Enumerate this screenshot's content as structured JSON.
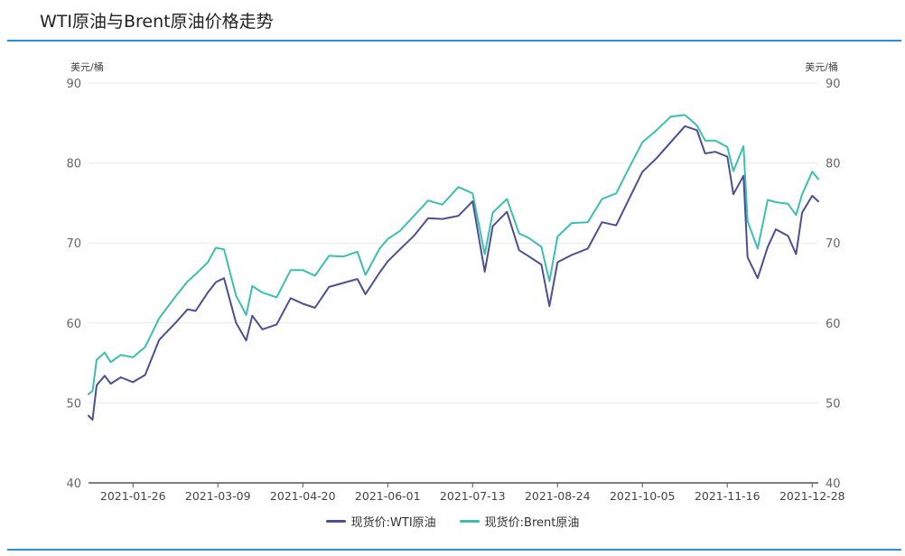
{
  "title": "WTI原油与Brent原油价格走势",
  "colors": {
    "accent": "#2a8fd8",
    "wti": "#4b5094",
    "brent": "#3dbfb0",
    "grid": "#e8e8e8",
    "axis": "#555555"
  },
  "legend": {
    "wti_label": "现货价:WTI原油",
    "brent_label": "现货价:Brent原油"
  },
  "chart_data": {
    "type": "line",
    "title": "WTI原油与Brent原油价格走势",
    "ylabel_left": "美元/桶",
    "ylabel_right": "美元/桶",
    "ylim": [
      40,
      90
    ],
    "yticks": [
      40,
      50,
      60,
      70,
      80,
      90
    ],
    "x_range": [
      "2021-01-04",
      "2021-12-31"
    ],
    "xticks": [
      "2021-01-26",
      "2021-03-09",
      "2021-04-20",
      "2021-06-01",
      "2021-07-13",
      "2021-08-24",
      "2021-10-05",
      "2021-11-16",
      "2021-12-28"
    ],
    "grid": true,
    "legend_position": "bottom-center",
    "series": [
      {
        "name": "现货价:WTI原油",
        "x": [
          "2021-01-04",
          "2021-01-06",
          "2021-01-08",
          "2021-01-12",
          "2021-01-15",
          "2021-01-20",
          "2021-01-26",
          "2021-02-01",
          "2021-02-08",
          "2021-02-16",
          "2021-02-22",
          "2021-02-26",
          "2021-03-04",
          "2021-03-08",
          "2021-03-12",
          "2021-03-18",
          "2021-03-23",
          "2021-03-26",
          "2021-03-31",
          "2021-04-07",
          "2021-04-14",
          "2021-04-20",
          "2021-04-26",
          "2021-05-03",
          "2021-05-10",
          "2021-05-17",
          "2021-05-21",
          "2021-05-28",
          "2021-06-01",
          "2021-06-07",
          "2021-06-14",
          "2021-06-21",
          "2021-06-28",
          "2021-07-06",
          "2021-07-13",
          "2021-07-19",
          "2021-07-23",
          "2021-07-30",
          "2021-08-05",
          "2021-08-10",
          "2021-08-16",
          "2021-08-20",
          "2021-08-24",
          "2021-08-31",
          "2021-09-08",
          "2021-09-15",
          "2021-09-22",
          "2021-09-28",
          "2021-10-05",
          "2021-10-12",
          "2021-10-19",
          "2021-10-26",
          "2021-11-01",
          "2021-11-05",
          "2021-11-10",
          "2021-11-16",
          "2021-11-19",
          "2021-11-24",
          "2021-11-26",
          "2021-12-01",
          "2021-12-06",
          "2021-12-10",
          "2021-12-16",
          "2021-12-20",
          "2021-12-23",
          "2021-12-28",
          "2021-12-31"
        ],
        "y": [
          48.4,
          47.9,
          52.2,
          53.4,
          52.4,
          53.2,
          52.6,
          53.5,
          57.9,
          60.0,
          61.7,
          61.5,
          63.8,
          65.1,
          65.6,
          60.0,
          57.8,
          60.9,
          59.2,
          59.8,
          63.1,
          62.4,
          61.9,
          64.5,
          65.0,
          65.5,
          63.6,
          66.3,
          67.7,
          69.2,
          70.9,
          73.1,
          73.0,
          73.4,
          75.2,
          66.4,
          72.1,
          73.9,
          69.1,
          68.3,
          67.3,
          62.1,
          67.6,
          68.5,
          69.3,
          72.6,
          72.2,
          75.3,
          78.9,
          80.6,
          82.6,
          84.6,
          84.1,
          81.2,
          81.4,
          80.8,
          76.1,
          78.4,
          68.2,
          65.6,
          69.5,
          71.7,
          70.9,
          68.6,
          73.8,
          75.9,
          75.2
        ]
      },
      {
        "name": "现货价:Brent原油",
        "x": [
          "2021-01-04",
          "2021-01-06",
          "2021-01-08",
          "2021-01-12",
          "2021-01-15",
          "2021-01-20",
          "2021-01-26",
          "2021-02-01",
          "2021-02-08",
          "2021-02-16",
          "2021-02-22",
          "2021-02-26",
          "2021-03-04",
          "2021-03-08",
          "2021-03-12",
          "2021-03-18",
          "2021-03-23",
          "2021-03-26",
          "2021-03-31",
          "2021-04-07",
          "2021-04-14",
          "2021-04-20",
          "2021-04-26",
          "2021-05-03",
          "2021-05-10",
          "2021-05-17",
          "2021-05-21",
          "2021-05-28",
          "2021-06-01",
          "2021-06-07",
          "2021-06-14",
          "2021-06-21",
          "2021-06-28",
          "2021-07-06",
          "2021-07-13",
          "2021-07-19",
          "2021-07-23",
          "2021-07-30",
          "2021-08-05",
          "2021-08-10",
          "2021-08-16",
          "2021-08-20",
          "2021-08-24",
          "2021-08-31",
          "2021-09-08",
          "2021-09-15",
          "2021-09-22",
          "2021-09-28",
          "2021-10-05",
          "2021-10-12",
          "2021-10-19",
          "2021-10-26",
          "2021-11-01",
          "2021-11-05",
          "2021-11-10",
          "2021-11-16",
          "2021-11-19",
          "2021-11-24",
          "2021-11-26",
          "2021-12-01",
          "2021-12-06",
          "2021-12-10",
          "2021-12-16",
          "2021-12-20",
          "2021-12-23",
          "2021-12-28",
          "2021-12-31"
        ],
        "y": [
          51.1,
          51.5,
          55.4,
          56.3,
          55.1,
          56.0,
          55.7,
          57.0,
          60.6,
          63.3,
          65.2,
          66.1,
          67.6,
          69.4,
          69.2,
          63.4,
          61.0,
          64.6,
          63.8,
          63.2,
          66.6,
          66.6,
          65.9,
          68.4,
          68.3,
          68.9,
          66.0,
          69.3,
          70.5,
          71.5,
          73.4,
          75.3,
          74.8,
          77.0,
          76.2,
          68.6,
          73.8,
          75.5,
          71.2,
          70.6,
          69.5,
          65.2,
          70.8,
          72.5,
          72.6,
          75.5,
          76.2,
          79.2,
          82.6,
          84.1,
          85.8,
          86.0,
          84.7,
          82.8,
          82.8,
          82.0,
          79.0,
          82.1,
          72.7,
          69.3,
          75.4,
          75.1,
          74.9,
          73.5,
          76.1,
          78.9,
          78.0
        ]
      }
    ]
  }
}
